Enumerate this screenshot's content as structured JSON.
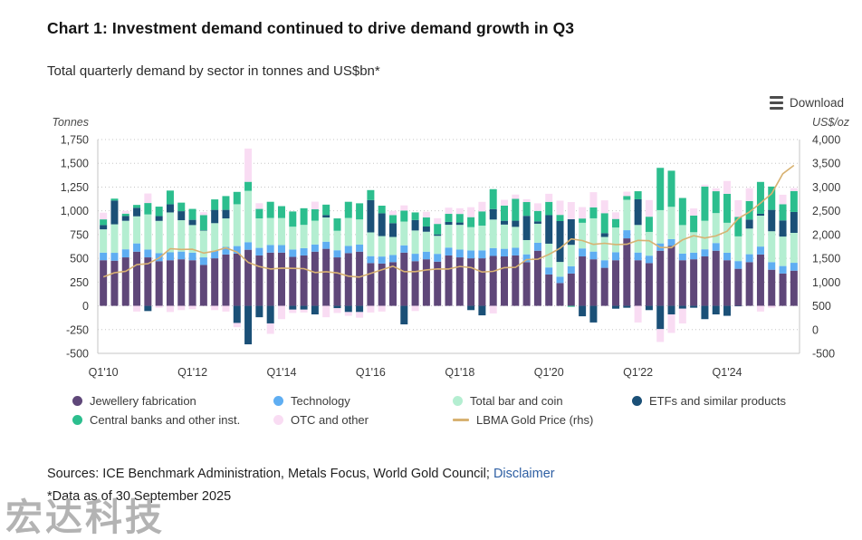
{
  "title": "Chart 1: Investment demand continued to drive demand growth in Q3",
  "subtitle": "Total quarterly demand by sector in tonnes and US$bn*",
  "download": {
    "label": "Download"
  },
  "footer": {
    "sources_prefix": "Sources: ICE Benchmark Administration, Metals Focus, World Gold Council; ",
    "disclaimer_link": "Disclaimer",
    "data_note": "*Data as of 30 September 2025"
  },
  "watermark": "宏达科技",
  "chart_data": {
    "type": "bar",
    "subtype": "stacked-columns-with-line",
    "grid": "dotted-horizontal",
    "legend_position": "bottom",
    "x_tick_every": 8,
    "categories": [
      "Q1'10",
      "Q2'10",
      "Q3'10",
      "Q4'10",
      "Q1'11",
      "Q2'11",
      "Q3'11",
      "Q4'11",
      "Q1'12",
      "Q2'12",
      "Q3'12",
      "Q4'12",
      "Q1'13",
      "Q2'13",
      "Q3'13",
      "Q4'13",
      "Q1'14",
      "Q2'14",
      "Q3'14",
      "Q4'14",
      "Q1'15",
      "Q2'15",
      "Q3'15",
      "Q4'15",
      "Q1'16",
      "Q2'16",
      "Q3'16",
      "Q4'16",
      "Q1'17",
      "Q2'17",
      "Q3'17",
      "Q4'17",
      "Q1'18",
      "Q2'18",
      "Q3'18",
      "Q4'18",
      "Q1'19",
      "Q2'19",
      "Q3'19",
      "Q4'19",
      "Q1'20",
      "Q2'20",
      "Q3'20",
      "Q4'20",
      "Q1'21",
      "Q2'21",
      "Q3'21",
      "Q4'21",
      "Q1'22",
      "Q2'22",
      "Q3'22",
      "Q4'22",
      "Q1'23",
      "Q2'23",
      "Q3'23",
      "Q4'23",
      "Q1'24",
      "Q2'24",
      "Q3'24",
      "Q4'24",
      "Q1'25",
      "Q2'25",
      "Q3'25"
    ],
    "left_axis": {
      "label": "Tonnes",
      "min": -500,
      "max": 1750,
      "step": 250
    },
    "right_axis": {
      "label": "US$/oz",
      "min": -500,
      "max": 4000,
      "step": 500
    },
    "series": [
      {
        "name": "Jewellery fabrication",
        "color": "#5F4779",
        "values": [
          480,
          475,
          510,
          570,
          510,
          470,
          480,
          490,
          480,
          430,
          500,
          540,
          550,
          590,
          530,
          560,
          560,
          515,
          530,
          570,
          600,
          510,
          555,
          570,
          450,
          445,
          460,
          560,
          470,
          490,
          465,
          530,
          510,
          500,
          500,
          525,
          520,
          530,
          460,
          580,
          330,
          240,
          340,
          520,
          490,
          400,
          480,
          710,
          480,
          450,
          580,
          630,
          480,
          490,
          520,
          580,
          480,
          390,
          460,
          540,
          380,
          340,
          370
        ]
      },
      {
        "name": "Technology",
        "color": "#5FAEF2",
        "values": [
          80,
          83,
          85,
          87,
          82,
          84,
          83,
          81,
          80,
          80,
          80,
          80,
          79,
          80,
          80,
          80,
          79,
          78,
          77,
          76,
          75,
          75,
          75,
          74,
          73,
          74,
          75,
          77,
          78,
          80,
          82,
          83,
          82,
          83,
          84,
          83,
          80,
          81,
          82,
          84,
          74,
          67,
          77,
          84,
          81,
          80,
          84,
          86,
          81,
          78,
          77,
          72,
          70,
          70,
          75,
          81,
          79,
          81,
          83,
          84,
          80,
          79,
          83
        ]
      },
      {
        "name": "Total bar and coin",
        "color": "#B4EED1",
        "values": [
          245,
          300,
          300,
          285,
          370,
          340,
          420,
          330,
          290,
          280,
          290,
          300,
          440,
          540,
          310,
          285,
          285,
          240,
          245,
          250,
          255,
          205,
          295,
          265,
          250,
          215,
          190,
          250,
          245,
          210,
          190,
          240,
          260,
          245,
          260,
          300,
          255,
          220,
          150,
          200,
          250,
          155,
          225,
          270,
          350,
          245,
          260,
          320,
          290,
          250,
          350,
          340,
          300,
          215,
          300,
          315,
          315,
          260,
          270,
          325,
          325,
          310,
          315
        ]
      },
      {
        "name": "ETFs and similar products",
        "color": "#1B5077",
        "values": [
          45,
          250,
          50,
          90,
          -55,
          50,
          85,
          95,
          55,
          5,
          140,
          90,
          -180,
          -405,
          -120,
          -185,
          0,
          -40,
          -40,
          -90,
          25,
          -25,
          -65,
          -65,
          340,
          240,
          145,
          -195,
          110,
          55,
          15,
          30,
          25,
          -45,
          -100,
          110,
          40,
          65,
          255,
          25,
          300,
          430,
          270,
          -110,
          -175,
          40,
          -30,
          -20,
          270,
          -45,
          -245,
          -90,
          -30,
          -20,
          -140,
          -90,
          -105,
          -5,
          95,
          20,
          225,
          170,
          220
        ]
      },
      {
        "name": "Central banks and other inst.",
        "color": "#2CBE8E",
        "values": [
          60,
          20,
          25,
          30,
          120,
          100,
          145,
          90,
          115,
          160,
          110,
          145,
          130,
          95,
          100,
          170,
          125,
          160,
          175,
          120,
          110,
          130,
          170,
          170,
          105,
          80,
          85,
          115,
          80,
          95,
          110,
          85,
          90,
          105,
          150,
          210,
          160,
          230,
          145,
          110,
          140,
          65,
          -10,
          45,
          115,
          210,
          90,
          40,
          85,
          160,
          445,
          380,
          285,
          175,
          360,
          230,
          305,
          205,
          195,
          335,
          245,
          170,
          220
        ]
      },
      {
        "name": "OTC and other",
        "color": "#F9DCF3",
        "values": [
          70,
          0,
          30,
          -60,
          100,
          -20,
          -65,
          -45,
          -35,
          30,
          -45,
          -60,
          -45,
          350,
          60,
          -110,
          -140,
          -35,
          -30,
          80,
          -120,
          -50,
          -40,
          -60,
          -70,
          -60,
          45,
          55,
          -55,
          60,
          60,
          65,
          60,
          105,
          100,
          -80,
          60,
          45,
          30,
          80,
          85,
          150,
          180,
          120,
          160,
          135,
          70,
          45,
          -175,
          175,
          -135,
          -195,
          -155,
          75,
          20,
          30,
          135,
          175,
          135,
          -60,
          -20,
          100,
          30
        ]
      }
    ],
    "line_series": {
      "name": "LBMA Gold Price (rhs)",
      "color": "#D8B272",
      "axis": "right",
      "values": [
        1110,
        1197,
        1227,
        1367,
        1386,
        1508,
        1702,
        1688,
        1691,
        1610,
        1652,
        1722,
        1632,
        1415,
        1326,
        1276,
        1294,
        1288,
        1282,
        1201,
        1218,
        1193,
        1124,
        1106,
        1181,
        1260,
        1335,
        1220,
        1219,
        1257,
        1278,
        1275,
        1329,
        1306,
        1213,
        1226,
        1304,
        1309,
        1474,
        1481,
        1583,
        1711,
        1909,
        1874,
        1794,
        1816,
        1790,
        1795,
        1877,
        1871,
        1729,
        1725,
        1890,
        1976,
        1928,
        1971,
        2070,
        2338,
        2474,
        2663,
        2860,
        3280,
        3456
      ]
    }
  }
}
